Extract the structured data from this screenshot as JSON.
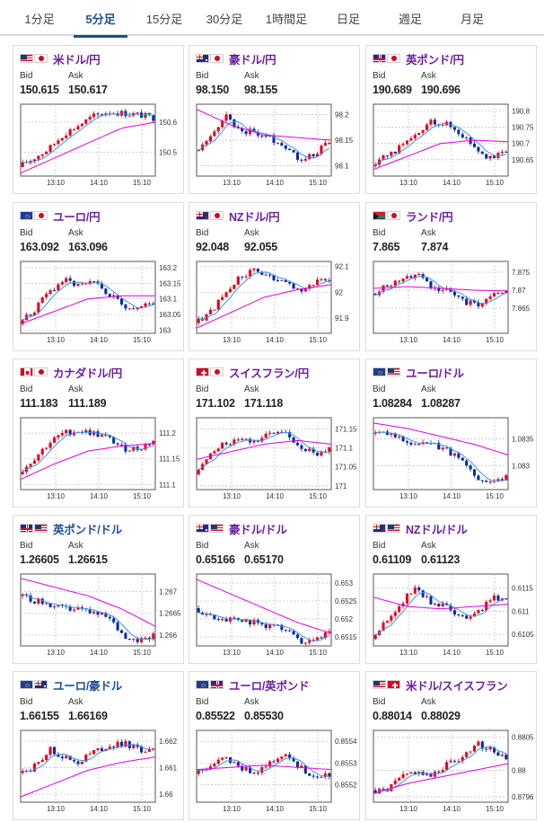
{
  "tabs": [
    {
      "label": "1分足",
      "active": false
    },
    {
      "label": "5分足",
      "active": true
    },
    {
      "label": "15分足",
      "active": false
    },
    {
      "label": "30分足",
      "active": false
    },
    {
      "label": "1時間足",
      "active": false
    },
    {
      "label": "日足",
      "active": false
    },
    {
      "label": "週足",
      "active": false
    },
    {
      "label": "月足",
      "active": false
    }
  ],
  "labels": {
    "bid": "Bid",
    "ask": "Ask"
  },
  "colors": {
    "up": "#e8001c",
    "down": "#0a2d9c",
    "ma_short": "#3a96e8",
    "ma_long": "#e000e0",
    "accent": "#1d4f91",
    "pair_title": "#6b1fa0"
  },
  "cards": [
    {
      "pair": "米ドル/円",
      "flags": [
        "flag-us",
        "flag-jp"
      ],
      "bid": "150.615",
      "ask": "150.617",
      "chart_data": {
        "type": "candlestick",
        "x_ticks": [
          "13:10",
          "14:10",
          "15:10"
        ],
        "y_ticks": [
          "150.6",
          "150.5"
        ],
        "y_tick_values": [
          150.6,
          150.5
        ],
        "ylim": [
          150.42,
          150.66
        ],
        "trend": [
          150.45,
          150.48,
          150.51,
          150.56,
          150.59,
          150.62,
          150.635,
          150.63,
          150.625,
          150.615
        ],
        "long_ma": [
          150.43,
          150.48,
          150.53,
          150.58,
          150.6
        ]
      }
    },
    {
      "pair": "豪ドル/円",
      "flags": [
        "flag-au",
        "flag-jp"
      ],
      "bid": "98.150",
      "ask": "98.155",
      "chart_data": {
        "type": "candlestick",
        "x_ticks": [
          "13:10",
          "14:10",
          "15:10"
        ],
        "y_ticks": [
          "98.2",
          "98.15",
          "98.1"
        ],
        "y_tick_values": [
          98.2,
          98.15,
          98.1
        ],
        "ylim": [
          98.08,
          98.22
        ],
        "trend": [
          98.13,
          98.15,
          98.2,
          98.17,
          98.165,
          98.155,
          98.14,
          98.115,
          98.12,
          98.15
        ],
        "long_ma": [
          98.21,
          98.18,
          98.16,
          98.155,
          98.15
        ]
      }
    },
    {
      "pair": "英ポンド/円",
      "flags": [
        "flag-gb",
        "flag-jp"
      ],
      "bid": "190.689",
      "ask": "190.696",
      "chart_data": {
        "type": "candlestick",
        "x_ticks": [
          "13:10",
          "14:10",
          "15:10"
        ],
        "y_ticks": [
          "190.8",
          "190.75",
          "190.7",
          "190.65"
        ],
        "y_tick_values": [
          190.8,
          190.75,
          190.7,
          190.65
        ],
        "ylim": [
          190.6,
          190.82
        ],
        "trend": [
          190.63,
          190.66,
          190.69,
          190.72,
          190.77,
          190.76,
          190.73,
          190.69,
          190.65,
          190.68
        ],
        "long_ma": [
          190.62,
          190.66,
          190.7,
          190.71,
          190.705
        ]
      }
    },
    {
      "pair": "ユーロ/円",
      "flags": [
        "flag-eu",
        "flag-jp"
      ],
      "bid": "163.092",
      "ask": "163.096",
      "chart_data": {
        "type": "candlestick",
        "x_ticks": [
          "13:10",
          "14:10",
          "15:10"
        ],
        "y_ticks": [
          "163.2",
          "163.15",
          "163.1",
          "163.05",
          "163"
        ],
        "y_tick_values": [
          163.2,
          163.15,
          163.1,
          163.05,
          163
        ],
        "ylim": [
          162.99,
          163.22
        ],
        "trend": [
          163.02,
          163.06,
          163.12,
          163.16,
          163.14,
          163.15,
          163.12,
          163.08,
          163.07,
          163.09
        ],
        "long_ma": [
          163.02,
          163.06,
          163.1,
          163.11,
          163.11
        ]
      }
    },
    {
      "pair": "NZドル/円",
      "flags": [
        "flag-nz",
        "flag-jp"
      ],
      "bid": "92.048",
      "ask": "92.055",
      "chart_data": {
        "type": "candlestick",
        "x_ticks": [
          "13:10",
          "14:10",
          "15:10"
        ],
        "y_ticks": [
          "92.1",
          "92",
          "91.9"
        ],
        "y_tick_values": [
          92.1,
          92,
          91.9
        ],
        "ylim": [
          91.84,
          92.12
        ],
        "trend": [
          91.88,
          91.92,
          91.99,
          92.06,
          92.08,
          92.06,
          92.03,
          92.01,
          92.04,
          92.05
        ],
        "long_ma": [
          91.86,
          91.92,
          91.98,
          92.01,
          92.03
        ]
      }
    },
    {
      "pair": "ランド/円",
      "flags": [
        "flag-za",
        "flag-jp"
      ],
      "bid": "7.865",
      "ask": "7.874",
      "chart_data": {
        "type": "candlestick",
        "x_ticks": [
          "13:10",
          "14:10",
          "15:10"
        ],
        "y_ticks": [
          "7.875",
          "7.87",
          "7.865"
        ],
        "y_tick_values": [
          7.875,
          7.87,
          7.865
        ],
        "ylim": [
          7.858,
          7.878
        ],
        "trend": [
          7.869,
          7.871,
          7.873,
          7.875,
          7.871,
          7.87,
          7.867,
          7.866,
          7.868,
          7.87
        ],
        "long_ma": [
          7.8705,
          7.871,
          7.8705,
          7.87,
          7.8698
        ]
      }
    },
    {
      "pair": "カナダドル/円",
      "flags": [
        "flag-ca",
        "flag-jp"
      ],
      "bid": "111.183",
      "ask": "111.189",
      "chart_data": {
        "type": "candlestick",
        "x_ticks": [
          "13:10",
          "14:10",
          "15:10"
        ],
        "y_ticks": [
          "111.2",
          "111.15",
          "111.1"
        ],
        "y_tick_values": [
          111.2,
          111.15,
          111.1
        ],
        "ylim": [
          111.09,
          111.23
        ],
        "trend": [
          111.12,
          111.15,
          111.18,
          111.2,
          111.205,
          111.2,
          111.19,
          111.17,
          111.17,
          111.185
        ],
        "long_ma": [
          111.11,
          111.14,
          111.165,
          111.175,
          111.18
        ]
      }
    },
    {
      "pair": "スイスフラン/円",
      "flags": [
        "flag-ch",
        "flag-jp"
      ],
      "bid": "171.102",
      "ask": "171.118",
      "chart_data": {
        "type": "candlestick",
        "x_ticks": [
          "13:10",
          "14:10",
          "15:10"
        ],
        "y_ticks": [
          "171.15",
          "171.1",
          "171.05",
          "171"
        ],
        "y_tick_values": [
          171.15,
          171.1,
          171.05,
          171
        ],
        "ylim": [
          170.99,
          171.18
        ],
        "trend": [
          171.03,
          171.08,
          171.11,
          171.13,
          171.12,
          171.135,
          171.14,
          171.11,
          171.08,
          171.1
        ],
        "long_ma": [
          171.07,
          171.09,
          171.11,
          171.12,
          171.11
        ]
      }
    },
    {
      "pair": "ユーロ/ドル",
      "flags": [
        "flag-eu",
        "flag-us"
      ],
      "bid": "1.08284",
      "ask": "1.08287",
      "chart_data": {
        "type": "candlestick",
        "x_ticks": [
          "13:10",
          "14:10",
          "15:10"
        ],
        "y_ticks": [
          "1.0835",
          "1.083"
        ],
        "y_tick_values": [
          1.0835,
          1.083
        ],
        "ylim": [
          1.08255,
          1.0839
        ],
        "trend": [
          1.0836,
          1.0836,
          1.0835,
          1.0834,
          1.0834,
          1.0833,
          1.0831,
          1.0828,
          1.0827,
          1.0828
        ],
        "long_ma": [
          1.0838,
          1.0837,
          1.08355,
          1.0834,
          1.0832
        ]
      }
    },
    {
      "pair": "英ポンド/ドル",
      "flags": [
        "flag-gb",
        "flag-us"
      ],
      "bid": "1.26605",
      "ask": "1.26615",
      "chart_data": {
        "type": "candlestick",
        "x_ticks": [
          "13:10",
          "14:10",
          "15:10"
        ],
        "y_ticks": [
          "1.267",
          "1.2665",
          "1.266"
        ],
        "y_tick_values": [
          1.267,
          1.2665,
          1.266
        ],
        "ylim": [
          1.26575,
          1.2674
        ],
        "trend": [
          1.2669,
          1.2668,
          1.2667,
          1.2666,
          1.2666,
          1.2665,
          1.2664,
          1.266,
          1.2659,
          1.266
        ],
        "long_ma": [
          1.2673,
          1.2671,
          1.2669,
          1.2666,
          1.2662
        ]
      }
    },
    {
      "pair": "豪ドル/ドル",
      "flags": [
        "flag-au",
        "flag-us"
      ],
      "bid": "0.65166",
      "ask": "0.65170",
      "chart_data": {
        "type": "candlestick",
        "x_ticks": [
          "13:10",
          "14:10",
          "15:10"
        ],
        "y_ticks": [
          "0.653",
          "0.6525",
          "0.652",
          "0.6515"
        ],
        "y_tick_values": [
          0.653,
          0.6525,
          0.652,
          0.6515
        ],
        "ylim": [
          0.65125,
          0.65325
        ],
        "trend": [
          0.6523,
          0.6521,
          0.652,
          0.652,
          0.6519,
          0.6518,
          0.6517,
          0.6514,
          0.6514,
          0.6516
        ],
        "long_ma": [
          0.6531,
          0.6527,
          0.6523,
          0.6519,
          0.6516
        ]
      }
    },
    {
      "pair": "NZドル/ドル",
      "flags": [
        "flag-nz",
        "flag-us"
      ],
      "bid": "0.61109",
      "ask": "0.61123",
      "chart_data": {
        "type": "candlestick",
        "x_ticks": [
          "13:10",
          "14:10",
          "15:10"
        ],
        "y_ticks": [
          "0.6115",
          "0.611",
          "0.6105"
        ],
        "y_tick_values": [
          0.6115,
          0.611,
          0.6105
        ],
        "ylim": [
          0.61025,
          0.6118
        ],
        "trend": [
          0.6104,
          0.6108,
          0.6112,
          0.6115,
          0.6112,
          0.6111,
          0.6109,
          0.6109,
          0.6113,
          0.6112
        ],
        "long_ma": [
          0.6113,
          0.6111,
          0.61105,
          0.6111,
          0.61115
        ]
      }
    },
    {
      "pair": "ユーロ/豪ドル",
      "flags": [
        "flag-eu",
        "flag-au"
      ],
      "bid": "1.66155",
      "ask": "1.66169",
      "chart_data": {
        "type": "candlestick",
        "x_ticks": [
          "13:10",
          "14:10",
          "15:10"
        ],
        "y_ticks": [
          "1.662",
          "1.661",
          "1.66"
        ],
        "y_tick_values": [
          1.662,
          1.661,
          1.66
        ],
        "ylim": [
          1.6597,
          1.6624
        ],
        "trend": [
          1.6608,
          1.661,
          1.6617,
          1.6614,
          1.6612,
          1.6616,
          1.6618,
          1.6619,
          1.6617,
          1.6616
        ],
        "long_ma": [
          1.6599,
          1.6604,
          1.6609,
          1.6612,
          1.6614
        ]
      }
    },
    {
      "pair": "ユーロ/英ポンド",
      "flags": [
        "flag-eu",
        "flag-gb"
      ],
      "bid": "0.85522",
      "ask": "0.85530",
      "chart_data": {
        "type": "candlestick",
        "x_ticks": [
          "13:10",
          "14:10",
          "15:10"
        ],
        "y_ticks": [
          "0.8554",
          "0.8553",
          "0.8552"
        ],
        "y_tick_values": [
          0.8554,
          0.8553,
          0.8552
        ],
        "ylim": [
          0.85512,
          0.85545
        ],
        "trend": [
          0.85525,
          0.85528,
          0.85532,
          0.85528,
          0.85526,
          0.8553,
          0.85535,
          0.85528,
          0.85524,
          0.85525
        ],
        "long_ma": [
          0.85527,
          0.85528,
          0.85529,
          0.85528,
          0.85527
        ]
      }
    },
    {
      "pair": "米ドル/スイスフラン",
      "flags": [
        "flag-us",
        "flag-ch"
      ],
      "bid": "0.88014",
      "ask": "0.88029",
      "chart_data": {
        "type": "candlestick",
        "x_ticks": [
          "13:10",
          "14:10",
          "15:10"
        ],
        "y_ticks": [
          "0.8805",
          "0.88",
          "0.8796"
        ],
        "y_tick_values": [
          0.8805,
          0.88,
          0.8796
        ],
        "ylim": [
          0.87952,
          0.8806
        ],
        "trend": [
          0.8797,
          0.8797,
          0.8799,
          0.88,
          0.8799,
          0.8801,
          0.8802,
          0.8804,
          0.8803,
          0.8802
        ],
        "long_ma": [
          0.87965,
          0.8798,
          0.8799,
          0.88,
          0.8801
        ]
      }
    }
  ]
}
